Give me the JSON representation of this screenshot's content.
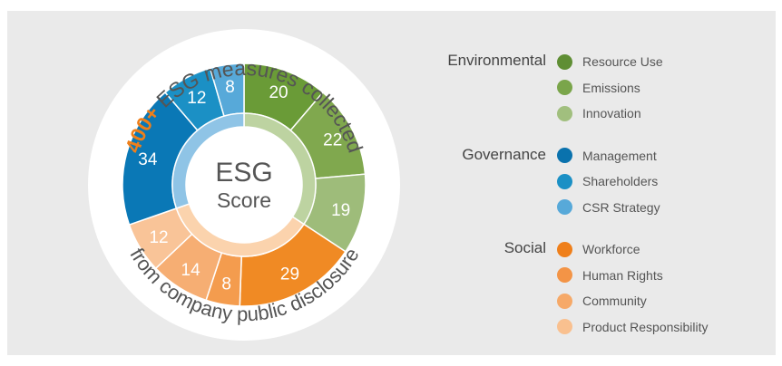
{
  "title": {
    "highlight": "400+",
    "top_text": " ESG measures collected",
    "bottom_text": "from company public disclosure"
  },
  "center": {
    "line1": "ESG",
    "line2": "Score"
  },
  "chart_data": {
    "type": "pie",
    "categories": [
      "Resource Use",
      "Emissions",
      "Innovation",
      "Workforce",
      "Human Rights",
      "Community",
      "Product Responsibility",
      "Management",
      "Shareholders",
      "CSR Strategy"
    ],
    "values": [
      20,
      22,
      19,
      29,
      8,
      14,
      12,
      34,
      12,
      8
    ],
    "colors": [
      "#6a9b37",
      "#80a84e",
      "#9ebc7a",
      "#f08a24",
      "#f49c4e",
      "#f6ae73",
      "#f9c498",
      "#0a78b6",
      "#1b90c5",
      "#57a9d9"
    ],
    "groups": [
      {
        "name": "Environmental",
        "values": [
          20,
          22,
          19
        ],
        "inner_color": "#bdd3a1"
      },
      {
        "name": "Social",
        "values": [
          29,
          8,
          14,
          12
        ],
        "inner_color": "#fbd3ad"
      },
      {
        "name": "Governance",
        "values": [
          34,
          12,
          8
        ],
        "inner_color": "#8fc4e6"
      }
    ]
  },
  "legend": [
    {
      "group": "Environmental",
      "items": [
        {
          "label": "Resource Use",
          "color": "#5f8e34"
        },
        {
          "label": "Emissions",
          "color": "#7aa54a"
        },
        {
          "label": "Innovation",
          "color": "#a1bf7e"
        }
      ]
    },
    {
      "group": "Governance",
      "items": [
        {
          "label": "Management",
          "color": "#0a72ad"
        },
        {
          "label": "Shareholders",
          "color": "#1b90c5"
        },
        {
          "label": "CSR Strategy",
          "color": "#57a9d9"
        }
      ]
    },
    {
      "group": "Social",
      "items": [
        {
          "label": "Workforce",
          "color": "#ef7f1a"
        },
        {
          "label": "Human Rights",
          "color": "#f39446"
        },
        {
          "label": "Community",
          "color": "#f6a968"
        },
        {
          "label": "Product Responsibility",
          "color": "#f9c08f"
        }
      ]
    }
  ]
}
